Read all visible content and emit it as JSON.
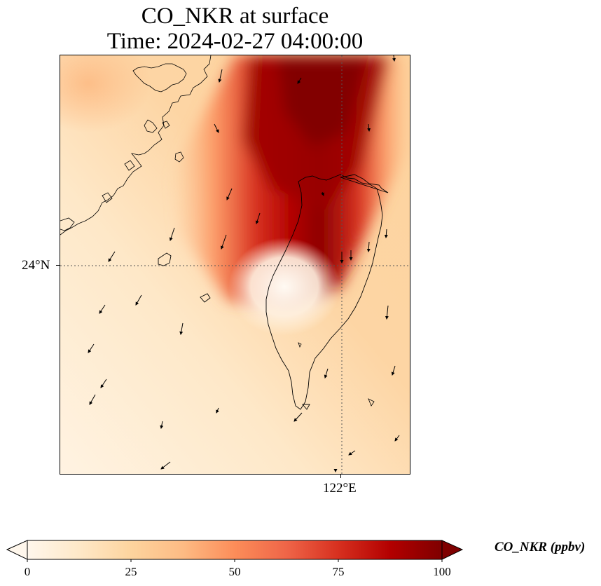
{
  "title": {
    "line1": "CO_NKR at surface",
    "line2": "Time: 2024-02-27 04:00:00"
  },
  "axes": {
    "lat_tick": "24°N",
    "lon_tick": "122°E",
    "gridlines": "dotted"
  },
  "colorbar": {
    "label": "CO_NKR (ppbv)",
    "colormap": "OrRd",
    "min": 0,
    "max": 100,
    "extend": "both",
    "ticks": [
      "0",
      "25",
      "50",
      "75",
      "100"
    ],
    "colors": [
      "#fff7ec",
      "#fee8c8",
      "#fdd49e",
      "#fdbb84",
      "#fc8d59",
      "#ef6548",
      "#d7301f",
      "#b30000",
      "#7f0000"
    ]
  },
  "map": {
    "features": [
      "coastline-taiwan",
      "coastline-fujian",
      "wind-vectors"
    ],
    "field_description_values": {
      "plume_peak_ppbv": 100,
      "background_ppbv": 8
    }
  }
}
